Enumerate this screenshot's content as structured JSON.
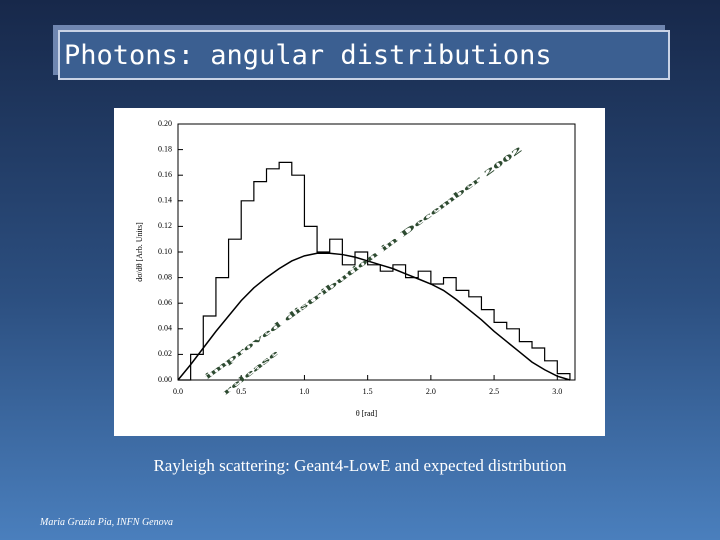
{
  "title": "Photons: angular distributions",
  "caption": "Rayleigh scattering: Geant4-LowE and expected distribution",
  "footer": "Maria Grazia Pia, INFN Genova",
  "chart_data": {
    "type": "line",
    "annotations": [
      "improved distribution in December 2002",
      "release"
    ],
    "x_label": "θ [rad]",
    "y_label": "dσ/dθ [Arb. Units]",
    "x": [
      0,
      0.1,
      0.2,
      0.3,
      0.4,
      0.5,
      0.6,
      0.7,
      0.8,
      0.9,
      1.0,
      1.1,
      1.2,
      1.3,
      1.4,
      1.5,
      1.6,
      1.7,
      1.8,
      1.9,
      2.0,
      2.1,
      2.2,
      2.3,
      2.4,
      2.5,
      2.6,
      2.7,
      2.8,
      2.9,
      3.0,
      3.1
    ],
    "series": [
      {
        "color": "#000000",
        "style": "step",
        "values": [
          0,
          0.02,
          0.05,
          0.08,
          0.11,
          0.14,
          0.155,
          0.165,
          0.17,
          0.16,
          0.12,
          0.1,
          0.11,
          0.09,
          0.1,
          0.09,
          0.085,
          0.09,
          0.08,
          0.085,
          0.075,
          0.08,
          0.07,
          0.065,
          0.055,
          0.045,
          0.04,
          0.03,
          0.025,
          0.015,
          0.005,
          0
        ]
      },
      {
        "color": "#000000",
        "style": "smooth",
        "values": [
          0,
          0.012,
          0.025,
          0.038,
          0.05,
          0.062,
          0.072,
          0.08,
          0.087,
          0.093,
          0.097,
          0.099,
          0.099,
          0.098,
          0.096,
          0.093,
          0.09,
          0.087,
          0.083,
          0.079,
          0.075,
          0.07,
          0.063,
          0.055,
          0.047,
          0.038,
          0.03,
          0.022,
          0.014,
          0.008,
          0.003,
          0
        ]
      }
    ],
    "xlim": [
      0,
      3.14
    ],
    "ylim": [
      0,
      0.2
    ],
    "xticks": [
      {
        "value": 0,
        "label": "0.0"
      },
      {
        "value": 0.5,
        "label": "0.5"
      },
      {
        "value": 1,
        "label": "1.0"
      },
      {
        "value": 1.5,
        "label": "1.5"
      },
      {
        "value": 2,
        "label": "2.0"
      },
      {
        "value": 2.5,
        "label": "2.5"
      },
      {
        "value": 3,
        "label": "3.0"
      }
    ],
    "yticks": [
      {
        "value": 0,
        "label": "0.00"
      },
      {
        "value": 0.02,
        "label": "0.02"
      },
      {
        "value": 0.04,
        "label": "0.04"
      },
      {
        "value": 0.06,
        "label": "0.06"
      },
      {
        "value": 0.08,
        "label": "0.08"
      },
      {
        "value": 0.1,
        "label": "0.10"
      },
      {
        "value": 0.12,
        "label": "0.12"
      },
      {
        "value": 0.14,
        "label": "0.14"
      },
      {
        "value": 0.16,
        "label": "0.16"
      },
      {
        "value": 0.18,
        "label": "0.18"
      },
      {
        "value": 0.2,
        "label": "0.20"
      }
    ]
  }
}
